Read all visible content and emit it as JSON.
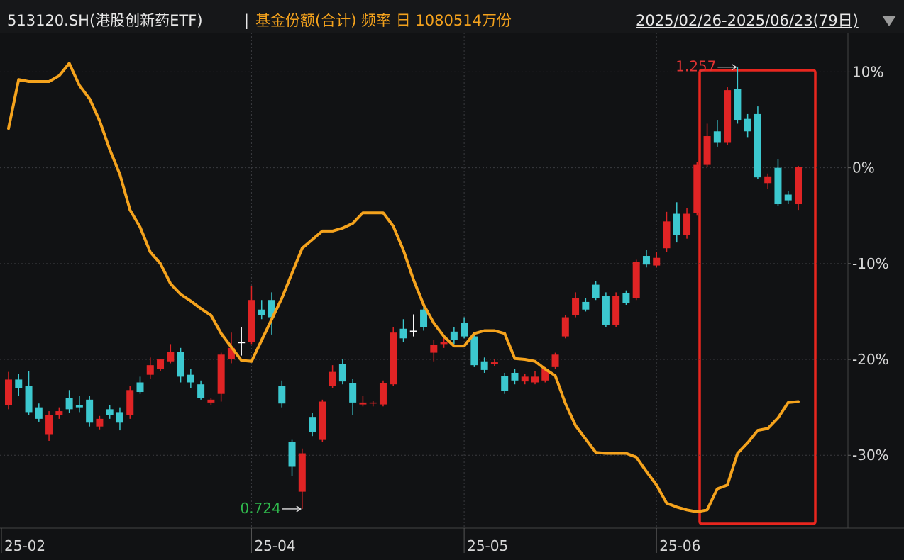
{
  "header": {
    "code": "513120.SH(港股创新药ETF)",
    "separator": "|",
    "indicator": "基金份额(合计) 频率 日 1080514万份",
    "range": "2025/02/26-2025/06/23(79日)"
  },
  "chart_data": {
    "type": "candlestick",
    "categories": [
      "25-02",
      null,
      null,
      null,
      null,
      null,
      null,
      null,
      null,
      null,
      null,
      null,
      null,
      null,
      null,
      null,
      null,
      null,
      null,
      null,
      null,
      null,
      null,
      null,
      "25-04",
      null,
      null,
      null,
      null,
      null,
      null,
      null,
      null,
      null,
      null,
      null,
      null,
      null,
      null,
      null,
      null,
      null,
      null,
      null,
      null,
      "25-05",
      null,
      null,
      null,
      null,
      null,
      null,
      null,
      null,
      null,
      null,
      null,
      null,
      null,
      null,
      null,
      null,
      null,
      null,
      "25-06",
      null,
      null,
      null,
      null,
      null,
      null,
      null,
      null,
      null,
      null,
      null,
      null,
      null,
      null
    ],
    "ohlc": [
      [
        -24.8,
        -21.3,
        -25.2,
        -22.1
      ],
      [
        -22.1,
        -21.5,
        -23.8,
        -23.0
      ],
      [
        -22.8,
        -21.2,
        -25.8,
        -25.5
      ],
      [
        -25.0,
        -24.6,
        -26.5,
        -26.2
      ],
      [
        -27.8,
        -25.4,
        -28.5,
        -25.8
      ],
      [
        -25.8,
        -25.0,
        -26.2,
        -25.4
      ],
      [
        -24.0,
        -23.2,
        -25.6,
        -25.2
      ],
      [
        -24.8,
        -23.8,
        -25.5,
        -25.0
      ],
      [
        -24.2,
        -23.8,
        -27.0,
        -26.6
      ],
      [
        -27.0,
        -25.9,
        -27.3,
        -26.2
      ],
      [
        -25.2,
        -24.8,
        -26.2,
        -25.8
      ],
      [
        -25.5,
        -25.0,
        -27.4,
        -26.6
      ],
      [
        -25.8,
        -22.8,
        -26.2,
        -23.2
      ],
      [
        -22.4,
        -21.8,
        -23.6,
        -23.4
      ],
      [
        -21.6,
        -19.8,
        -22.0,
        -20.6
      ],
      [
        -21.0,
        -20.0,
        -21.2,
        -20.0
      ],
      [
        -20.2,
        -18.4,
        -20.4,
        -19.2
      ],
      [
        -19.2,
        -18.8,
        -22.4,
        -21.8
      ],
      [
        -21.6,
        -21.0,
        -23.0,
        -22.4
      ],
      [
        -22.6,
        -22.2,
        -24.2,
        -24.0
      ],
      [
        -24.5,
        -24.0,
        -24.8,
        -24.2
      ],
      [
        -23.6,
        -19.3,
        -24.4,
        -19.5
      ],
      [
        -20.0,
        -17.2,
        -20.4,
        -18.8
      ],
      [
        -18.2,
        -16.6,
        -19.6,
        -18.2
      ],
      [
        -18.2,
        -12.3,
        -18.4,
        -13.8
      ],
      [
        -14.8,
        -13.8,
        -15.8,
        -15.4
      ],
      [
        -13.8,
        -13.0,
        -17.4,
        -15.6
      ],
      [
        -22.8,
        -22.2,
        -25.0,
        -24.6
      ],
      [
        -28.6,
        -28.4,
        -32.2,
        -31.2
      ],
      [
        -33.8,
        -29.3,
        -35.6,
        -29.8
      ],
      [
        -26.0,
        -25.6,
        -28.0,
        -27.6
      ],
      [
        -28.4,
        -24.2,
        -28.6,
        -24.4
      ],
      [
        -22.8,
        -20.6,
        -23.0,
        -21.3
      ],
      [
        -20.5,
        -20.0,
        -22.6,
        -22.3
      ],
      [
        -22.5,
        -22.0,
        -25.8,
        -24.5
      ],
      [
        -24.7,
        -23.8,
        -24.9,
        -24.5
      ],
      [
        -24.6,
        -24.3,
        -24.9,
        -24.5
      ],
      [
        -24.7,
        -22.2,
        -24.9,
        -22.5
      ],
      [
        -22.6,
        -16.6,
        -22.8,
        -17.2
      ],
      [
        -16.8,
        -15.8,
        -18.2,
        -17.8
      ],
      [
        -17.0,
        -15.3,
        -17.6,
        -17.0
      ],
      [
        -14.8,
        -14.2,
        -17.0,
        -16.6
      ],
      [
        -19.3,
        -18.0,
        -20.2,
        -18.5
      ],
      [
        -18.4,
        -17.6,
        -18.8,
        -18.2
      ],
      [
        -17.1,
        -16.6,
        -18.4,
        -18.0
      ],
      [
        -16.2,
        -15.6,
        -17.8,
        -17.6
      ],
      [
        -17.6,
        -17.2,
        -20.8,
        -20.6
      ],
      [
        -20.2,
        -19.8,
        -21.4,
        -21.1
      ],
      [
        -20.5,
        -20.0,
        -20.7,
        -20.3
      ],
      [
        -21.7,
        -21.4,
        -23.6,
        -23.3
      ],
      [
        -21.4,
        -21.0,
        -22.6,
        -22.2
      ],
      [
        -22.3,
        -21.5,
        -22.6,
        -21.8
      ],
      [
        -22.4,
        -21.2,
        -22.6,
        -21.8
      ],
      [
        -22.2,
        -20.8,
        -22.4,
        -21.0
      ],
      [
        -20.8,
        -19.3,
        -21.0,
        -19.5
      ],
      [
        -17.6,
        -15.4,
        -17.8,
        -15.6
      ],
      [
        -15.4,
        -13.0,
        -15.6,
        -13.6
      ],
      [
        -14.0,
        -13.6,
        -15.0,
        -14.8
      ],
      [
        -12.2,
        -11.8,
        -13.8,
        -13.6
      ],
      [
        -13.4,
        -13.0,
        -16.6,
        -16.4
      ],
      [
        -16.4,
        -13.0,
        -16.6,
        -13.4
      ],
      [
        -13.1,
        -12.8,
        -14.3,
        -14.1
      ],
      [
        -13.6,
        -9.6,
        -13.8,
        -9.8
      ],
      [
        -9.2,
        -8.6,
        -10.4,
        -10.1
      ],
      [
        -10.2,
        -8.8,
        -10.4,
        -9.4
      ],
      [
        -8.4,
        -4.6,
        -8.8,
        -5.6
      ],
      [
        -4.8,
        -3.6,
        -7.8,
        -7.0
      ],
      [
        -7.0,
        -4.2,
        -7.4,
        -4.8
      ],
      [
        -4.7,
        0.6,
        -5.0,
        0.3
      ],
      [
        0.3,
        4.6,
        0.1,
        3.3
      ],
      [
        3.8,
        5.0,
        2.2,
        2.6
      ],
      [
        2.6,
        8.4,
        2.4,
        8.1
      ],
      [
        8.2,
        10.5,
        4.6,
        5.0
      ],
      [
        5.1,
        5.6,
        3.2,
        3.8
      ],
      [
        5.6,
        6.4,
        -1.2,
        -1.0
      ],
      [
        -1.6,
        -0.6,
        -2.2,
        -0.9
      ],
      [
        0.0,
        0.9,
        -4.0,
        -3.8
      ],
      [
        -2.8,
        -2.4,
        -3.8,
        -3.4
      ],
      [
        -3.8,
        0.2,
        -4.4,
        0.1
      ]
    ],
    "up_color": "#e02425",
    "down_color": "#3cc8cf",
    "flat_color": "#ffffff",
    "line": {
      "color": "#f5a31d",
      "values": [
        4.1,
        9.2,
        9.0,
        9.0,
        9.0,
        9.6,
        10.9,
        8.6,
        7.2,
        4.9,
        1.9,
        -0.7,
        -4.4,
        -6.2,
        -8.8,
        -10.0,
        -12.1,
        -13.2,
        -13.9,
        -14.7,
        -15.4,
        -17.3,
        -18.7,
        -20.1,
        -20.2,
        -18.0,
        -15.8,
        -13.6,
        -11.0,
        -8.4,
        -7.5,
        -6.6,
        -6.6,
        -6.3,
        -5.8,
        -4.7,
        -4.7,
        -4.7,
        -6.1,
        -8.6,
        -11.7,
        -14.3,
        -16.2,
        -17.6,
        -18.6,
        -18.6,
        -17.3,
        -17.0,
        -17.0,
        -17.3,
        -19.9,
        -20.0,
        -20.2,
        -21.0,
        -21.7,
        -24.6,
        -26.9,
        -28.3,
        -29.7,
        -29.8,
        -29.8,
        -29.8,
        -30.2,
        -31.7,
        -33.1,
        -35.0,
        -35.4,
        -35.7,
        -35.9,
        -35.7,
        -33.5,
        -33.1,
        -29.8,
        -28.7,
        -27.4,
        -27.2,
        -26.1,
        -24.5,
        -24.4
      ]
    },
    "annotations": [
      {
        "text": "1.257",
        "color": "#e03333"
      },
      {
        "text": "0.724",
        "color": "#2fb84c"
      }
    ],
    "ylim": [
      -37.6,
      14.1
    ],
    "yticks": [
      {
        "value": 10,
        "label": "10%"
      },
      {
        "value": 0,
        "label": "0%"
      },
      {
        "value": -10,
        "label": "-10%"
      },
      {
        "value": -20,
        "label": "-20%"
      },
      {
        "value": -30,
        "label": "-30%"
      }
    ],
    "grid": true
  }
}
